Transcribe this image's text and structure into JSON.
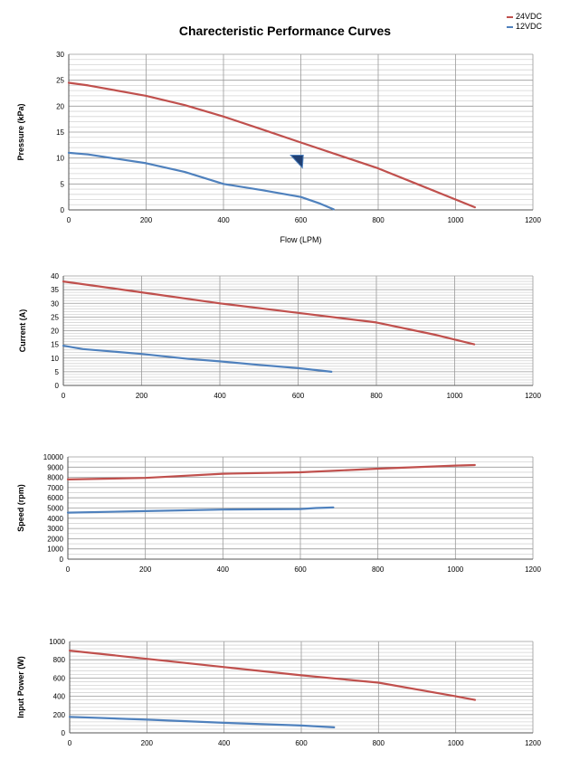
{
  "title": "Charecteristic Performance Curves",
  "legend": [
    {
      "name": "24VDC",
      "color": "#c0504d"
    },
    {
      "name": "12VDC",
      "color": "#4f81bd"
    }
  ],
  "chart_data": [
    {
      "type": "line",
      "ylabel": "Pressure (kPa)",
      "xlabel": "Flow (LPM)",
      "xlim": [
        0,
        1200
      ],
      "ylim": [
        0,
        30
      ],
      "xticks": [
        0,
        200,
        400,
        600,
        800,
        1000,
        1200
      ],
      "yticks": [
        0,
        5,
        10,
        15,
        20,
        25,
        30
      ],
      "grid": true,
      "series": [
        {
          "name": "24VDC",
          "color": "#c0504d",
          "x": [
            0,
            50,
            200,
            300,
            400,
            500,
            600,
            700,
            800,
            900,
            1000,
            1050
          ],
          "y": [
            24.5,
            24,
            22,
            20.2,
            18,
            15.5,
            13,
            10.5,
            8,
            5,
            2,
            0.5
          ]
        },
        {
          "name": "12VDC",
          "color": "#4f81bd",
          "x": [
            0,
            50,
            200,
            300,
            400,
            500,
            600,
            650,
            685
          ],
          "y": [
            11,
            10.7,
            9,
            7.3,
            5,
            3.8,
            2.5,
            1.2,
            0.1
          ]
        }
      ]
    },
    {
      "type": "line",
      "ylabel": "Current (A)",
      "xlabel": "",
      "xlim": [
        0,
        1200
      ],
      "ylim": [
        0,
        40
      ],
      "xticks": [
        0,
        200,
        400,
        600,
        800,
        1000,
        1200
      ],
      "yticks": [
        0,
        5,
        10,
        15,
        20,
        25,
        30,
        35,
        40
      ],
      "grid": true,
      "series": [
        {
          "name": "24VDC",
          "color": "#c0504d",
          "x": [
            0,
            200,
            400,
            600,
            800,
            950,
            1050
          ],
          "y": [
            38,
            34,
            30,
            26.5,
            23,
            18.5,
            15
          ]
        },
        {
          "name": "12VDC",
          "color": "#4f81bd",
          "x": [
            0,
            50,
            200,
            320,
            400,
            500,
            600,
            685
          ],
          "y": [
            14.5,
            13.3,
            11.5,
            9.7,
            8.8,
            7.5,
            6.3,
            5
          ]
        }
      ]
    },
    {
      "type": "line",
      "ylabel": "Speed (rpm)",
      "xlabel": "",
      "xlim": [
        0,
        1200
      ],
      "ylim": [
        0,
        10000
      ],
      "xticks": [
        0,
        200,
        400,
        600,
        800,
        1000,
        1200
      ],
      "yticks": [
        0,
        1000,
        2000,
        3000,
        4000,
        5000,
        6000,
        7000,
        8000,
        9000,
        10000
      ],
      "grid": true,
      "series": [
        {
          "name": "24VDC",
          "color": "#c0504d",
          "x": [
            0,
            200,
            400,
            600,
            800,
            1000,
            1050
          ],
          "y": [
            7800,
            7950,
            8350,
            8500,
            8850,
            9150,
            9200
          ]
        },
        {
          "name": "12VDC",
          "color": "#4f81bd",
          "x": [
            0,
            200,
            400,
            600,
            640,
            685
          ],
          "y": [
            4550,
            4700,
            4850,
            4900,
            5000,
            5050
          ]
        }
      ]
    },
    {
      "type": "line",
      "ylabel": "Input Power (W)",
      "xlabel": "",
      "xlim": [
        0,
        1200
      ],
      "ylim": [
        0,
        1000
      ],
      "xticks": [
        0,
        200,
        400,
        600,
        800,
        1000,
        1200
      ],
      "yticks": [
        0,
        200,
        400,
        600,
        800,
        1000
      ],
      "grid": true,
      "series": [
        {
          "name": "24VDC",
          "color": "#c0504d",
          "x": [
            0,
            200,
            400,
            600,
            800,
            1000,
            1050
          ],
          "y": [
            900,
            810,
            720,
            630,
            550,
            400,
            360
          ]
        },
        {
          "name": "12VDC",
          "color": "#4f81bd",
          "x": [
            0,
            200,
            400,
            600,
            685
          ],
          "y": [
            175,
            145,
            110,
            80,
            60
          ]
        }
      ]
    }
  ]
}
